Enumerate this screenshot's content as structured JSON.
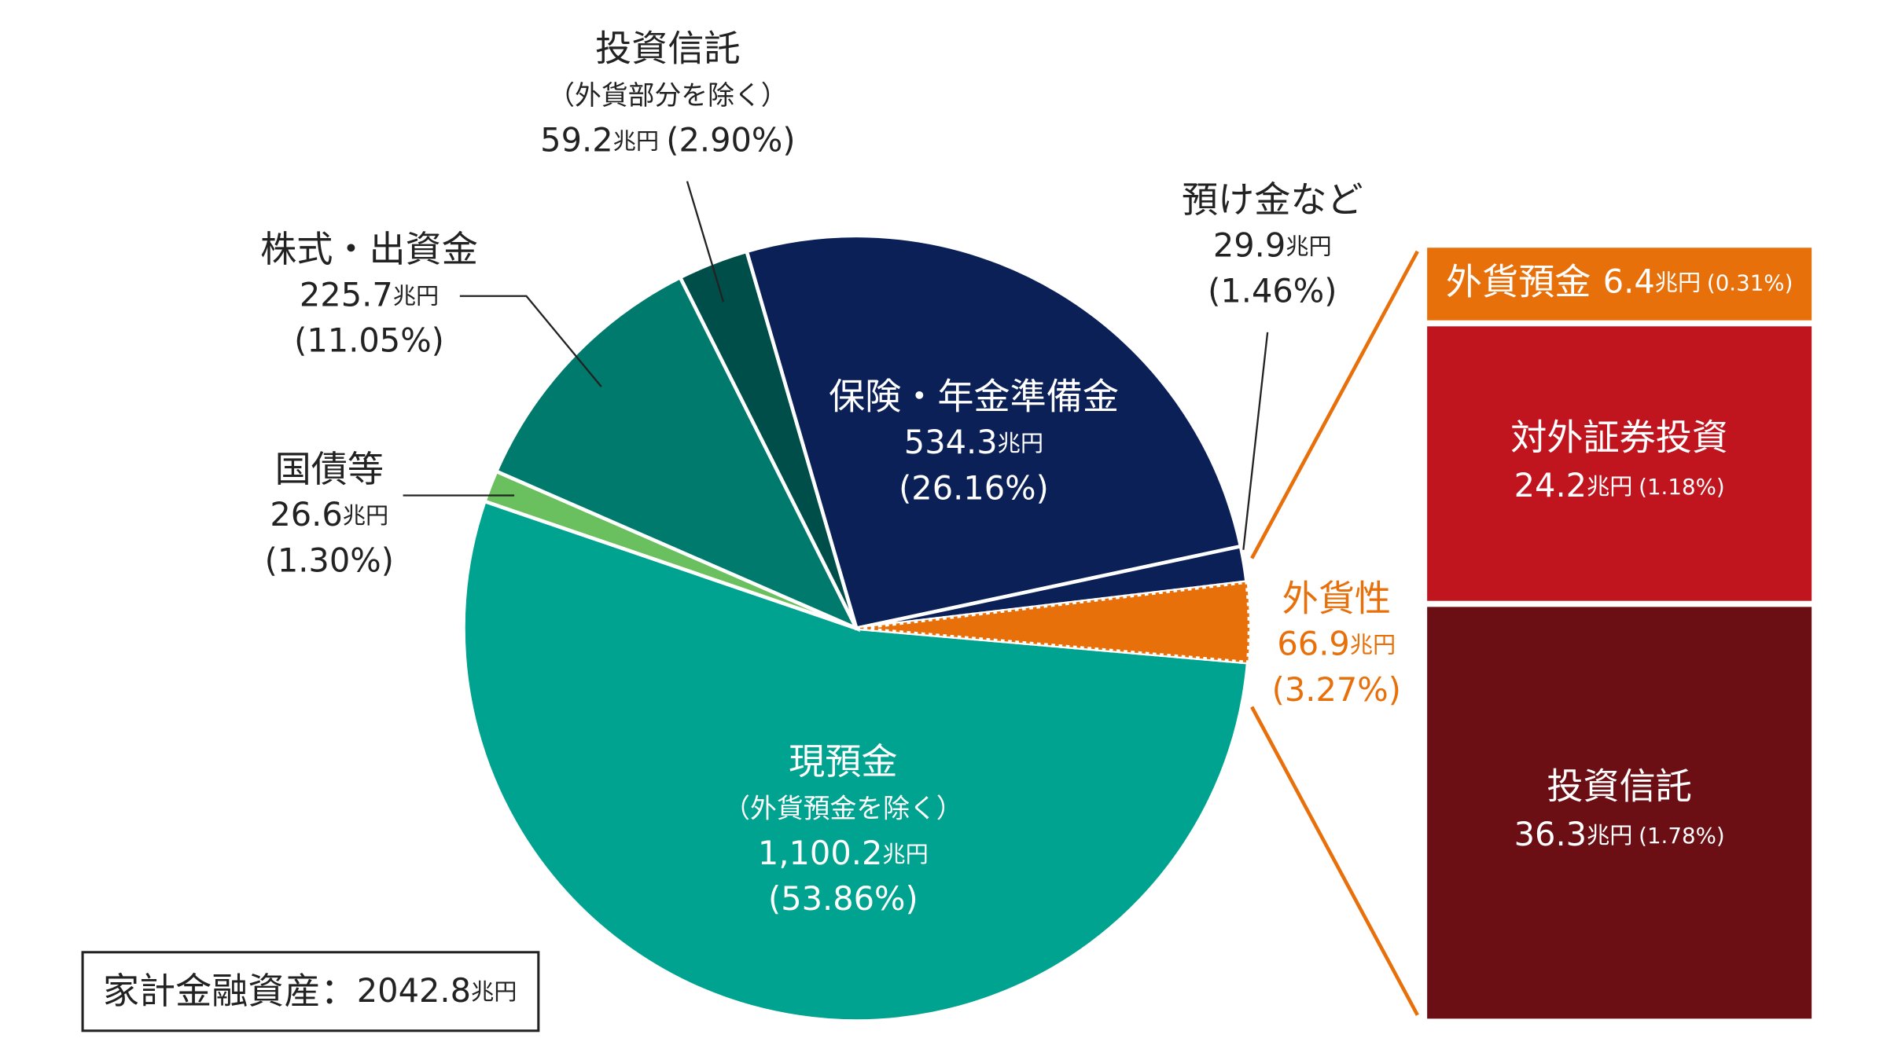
{
  "chart_data": {
    "type": "pie",
    "categories": [
      "現預金",
      "国債等",
      "株式・出資金",
      "投資信託",
      "保険・年金準備金",
      "預け金など",
      "外貨性"
    ],
    "notes": [
      "（外貨預金を除く）",
      null,
      null,
      "（外貨部分を除く）",
      null,
      null,
      null
    ],
    "values": [
      1100.2,
      26.6,
      225.7,
      59.2,
      534.3,
      29.9,
      66.9
    ],
    "value_labels": [
      "1,100.2",
      "26.6",
      "225.7",
      "59.2",
      "534.3",
      "29.9",
      "66.9"
    ],
    "percents": [
      53.86,
      1.3,
      11.05,
      2.9,
      26.16,
      1.46,
      3.27
    ],
    "percent_labels": [
      "(53.86%)",
      "(1.30%)",
      "(11.05%)",
      "(2.90%)",
      "(26.16%)",
      "(1.46%)",
      "(3.27%)"
    ],
    "colors": [
      "#00a38f",
      "#6abf5e",
      "#007a6c",
      "#004e4a",
      "#0c2058",
      "#0c2058",
      "#e8700a"
    ],
    "unit": "兆円",
    "breakdown": {
      "categories": [
        "外貨預金",
        "対外証券投資",
        "投資信託"
      ],
      "values": [
        6.4,
        24.2,
        36.3
      ],
      "percents": [
        0.31,
        1.18,
        1.78
      ],
      "percent_labels": [
        "(0.31%)",
        "(1.18%)",
        "(1.78%)"
      ],
      "colors": [
        "#e8700a",
        "#c0151f",
        "#6b0f14"
      ]
    },
    "total_label": "家計金融資産：",
    "total": 2042.8
  }
}
